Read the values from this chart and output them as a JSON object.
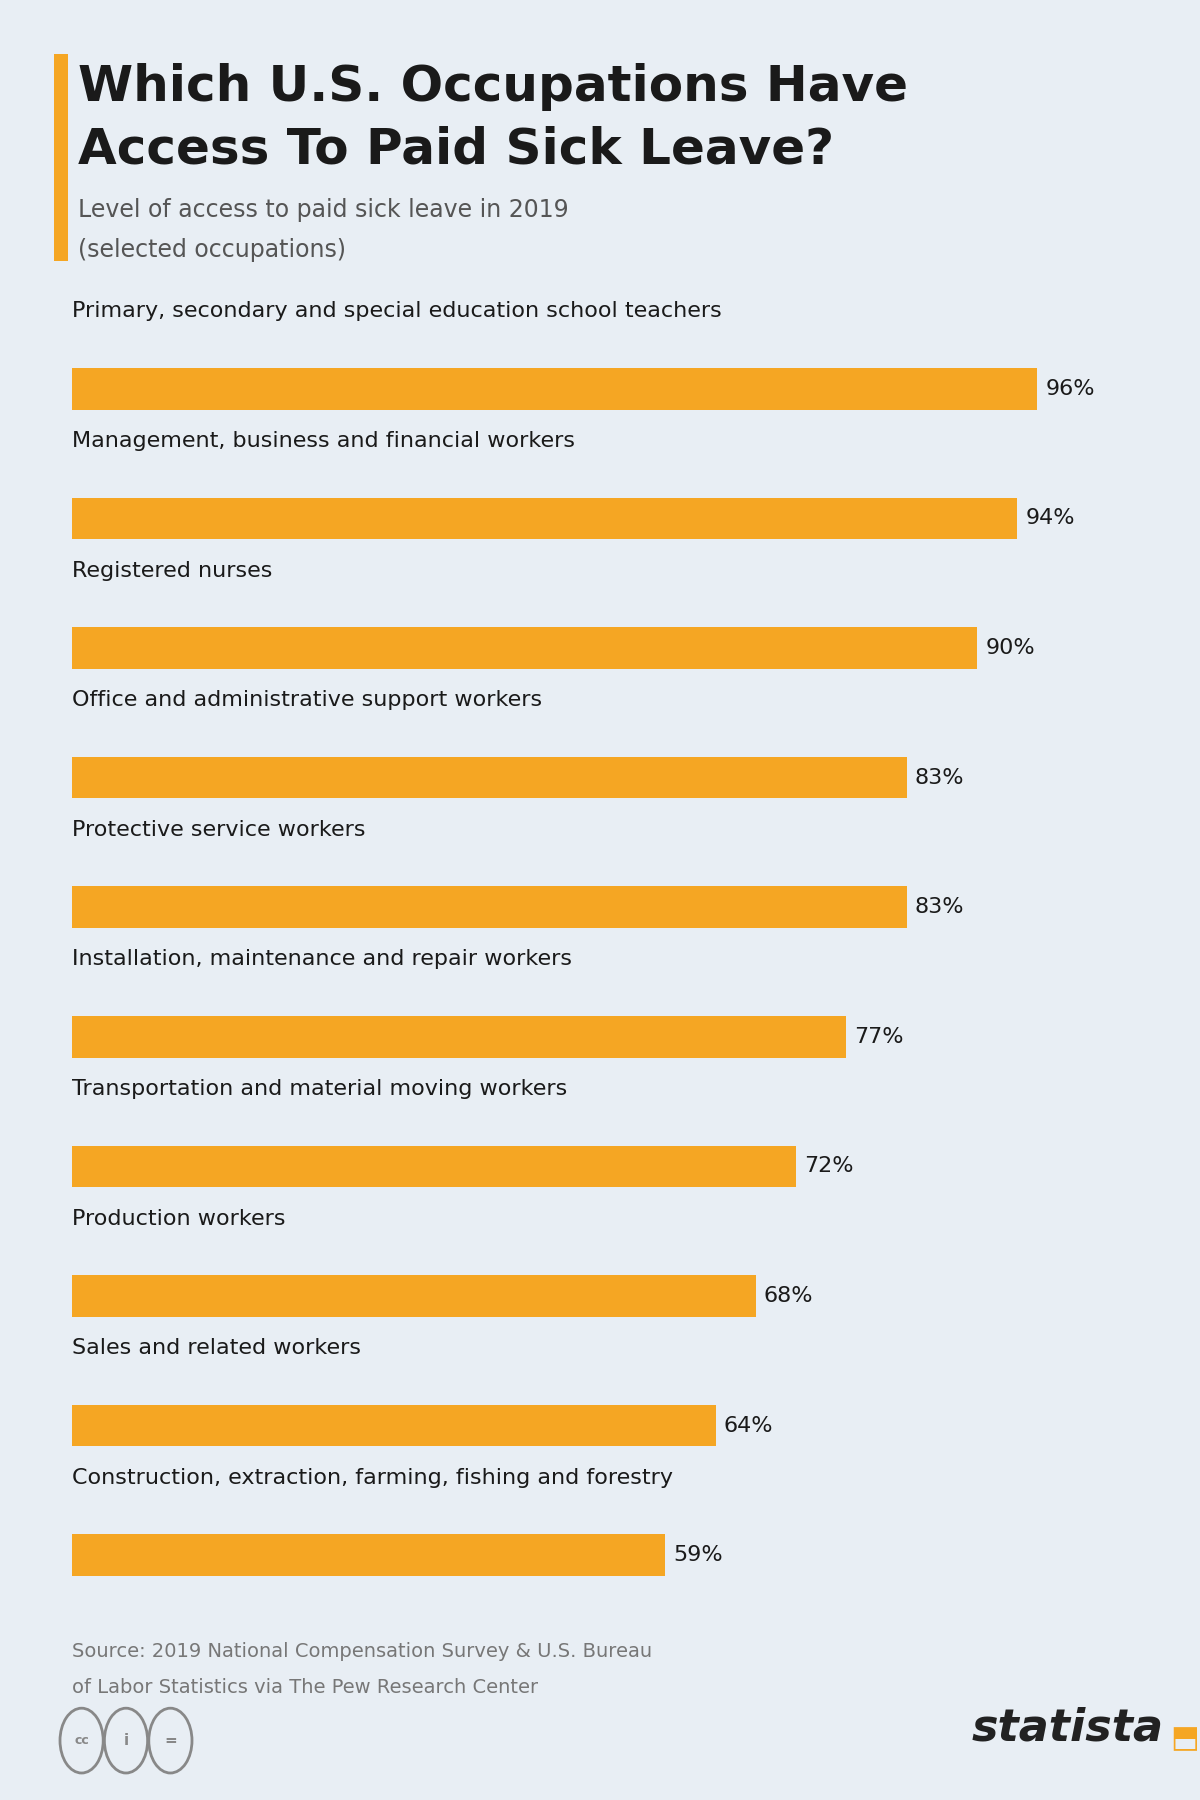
{
  "title_line1": "Which U.S. Occupations Have",
  "title_line2": "Access To Paid Sick Leave?",
  "subtitle_line1": "Level of access to paid sick leave in 2019",
  "subtitle_line2": "(selected occupations)",
  "categories": [
    "Primary, secondary and special education school teachers",
    "Management, business and financial workers",
    "Registered nurses",
    "Office and administrative support workers",
    "Protective service workers",
    "Installation, maintenance and repair workers",
    "Transportation and material moving workers",
    "Production workers",
    "Sales and related workers",
    "Construction, extraction, farming, fishing and forestry"
  ],
  "values": [
    96,
    94,
    90,
    83,
    83,
    77,
    72,
    68,
    64,
    59
  ],
  "bar_color": "#F5A623",
  "background_color": "#E8EEF4",
  "title_color": "#1a1a1a",
  "subtitle_color": "#555555",
  "label_color": "#1a1a1a",
  "value_color": "#1a1a1a",
  "accent_color": "#F5A623",
  "source_text_1": "Source: 2019 National Compensation Survey & U.S. Bureau",
  "source_text_2": "of Labor Statistics via The Pew Research Center",
  "source_color": "#777777",
  "statista_color": "#222222",
  "max_value": 100,
  "title_fontsize": 36,
  "subtitle_fontsize": 17,
  "category_fontsize": 16,
  "value_fontsize": 16,
  "source_fontsize": 14,
  "statista_fontsize": 32
}
